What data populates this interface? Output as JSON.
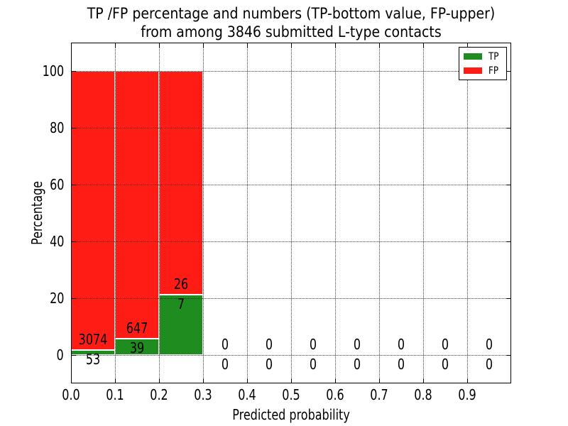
{
  "chart_data": {
    "type": "bar",
    "subtype": "stacked-percentage-histogram",
    "title_lines": [
      "TP /FP percentage and numbers (TP-bottom value, FP-upper)",
      "from among 3846 submitted L-type contacts"
    ],
    "xlabel": "Predicted probability",
    "ylabel": "Percentage",
    "xlim": [
      0.0,
      1.0
    ],
    "ylim": [
      -10,
      110
    ],
    "xticks": [
      {
        "value": 0.0,
        "label": "0.0"
      },
      {
        "value": 0.1,
        "label": "0.1"
      },
      {
        "value": 0.2,
        "label": "0.2"
      },
      {
        "value": 0.3,
        "label": "0.3"
      },
      {
        "value": 0.4,
        "label": "0.4"
      },
      {
        "value": 0.5,
        "label": "0.5"
      },
      {
        "value": 0.6,
        "label": "0.6"
      },
      {
        "value": 0.7,
        "label": "0.7"
      },
      {
        "value": 0.8,
        "label": "0.8"
      },
      {
        "value": 0.9,
        "label": "0.9"
      }
    ],
    "yticks": [
      {
        "value": 0,
        "label": "0"
      },
      {
        "value": 20,
        "label": "20"
      },
      {
        "value": 40,
        "label": "40"
      },
      {
        "value": 60,
        "label": "60"
      },
      {
        "value": 80,
        "label": "80"
      },
      {
        "value": 100,
        "label": "100"
      }
    ],
    "grid": {
      "linestyle": "dotted",
      "color": "#000000",
      "x_values": [
        0.1,
        0.2,
        0.3,
        0.4,
        0.5,
        0.6,
        0.7,
        0.8,
        0.9
      ],
      "y_values": [
        0,
        20,
        40,
        60,
        80,
        100
      ]
    },
    "legend": {
      "position": "upper-right",
      "entries": [
        {
          "label": "TP",
          "color": "#1e8c1e"
        },
        {
          "label": "FP",
          "color": "#ff1c15"
        }
      ]
    },
    "annotation_rule": "FP count printed above segment boundary, TP count printed below it",
    "bins": [
      {
        "x_start": 0.0,
        "x_end": 0.1,
        "tp_count": 53,
        "fp_count": 3074,
        "tp_pct": 1.7,
        "fp_pct": 98.3
      },
      {
        "x_start": 0.1,
        "x_end": 0.2,
        "tp_count": 39,
        "fp_count": 647,
        "tp_pct": 5.69,
        "fp_pct": 94.31
      },
      {
        "x_start": 0.2,
        "x_end": 0.3,
        "tp_count": 7,
        "fp_count": 26,
        "tp_pct": 21.21,
        "fp_pct": 78.79
      },
      {
        "x_start": 0.3,
        "x_end": 0.4,
        "tp_count": 0,
        "fp_count": 0,
        "tp_pct": 0,
        "fp_pct": 0
      },
      {
        "x_start": 0.4,
        "x_end": 0.5,
        "tp_count": 0,
        "fp_count": 0,
        "tp_pct": 0,
        "fp_pct": 0
      },
      {
        "x_start": 0.5,
        "x_end": 0.6,
        "tp_count": 0,
        "fp_count": 0,
        "tp_pct": 0,
        "fp_pct": 0
      },
      {
        "x_start": 0.6,
        "x_end": 0.7,
        "tp_count": 0,
        "fp_count": 0,
        "tp_pct": 0,
        "fp_pct": 0
      },
      {
        "x_start": 0.7,
        "x_end": 0.8,
        "tp_count": 0,
        "fp_count": 0,
        "tp_pct": 0,
        "fp_pct": 0
      },
      {
        "x_start": 0.8,
        "x_end": 0.9,
        "tp_count": 0,
        "fp_count": 0,
        "tp_pct": 0,
        "fp_pct": 0
      },
      {
        "x_start": 0.9,
        "x_end": 1.0,
        "tp_count": 0,
        "fp_count": 0,
        "tp_pct": 0,
        "fp_pct": 0
      }
    ],
    "colors": {
      "tp": "#1e8c1e",
      "fp": "#ff1c15",
      "axis": "#000000",
      "background": "#ffffff"
    }
  }
}
